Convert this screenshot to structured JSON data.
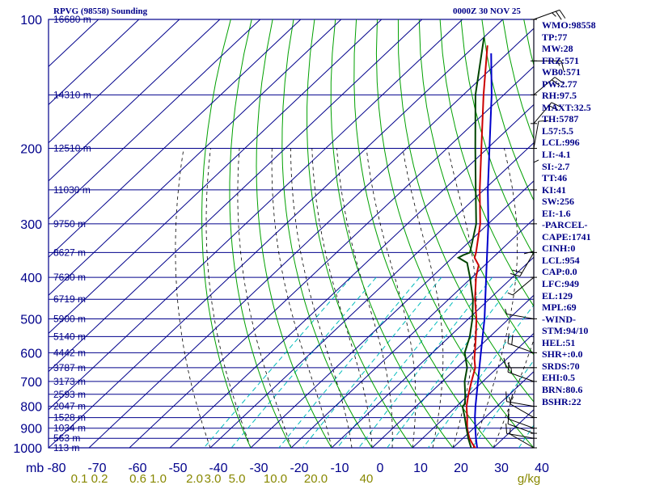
{
  "header": {
    "title": "RPVG (98558) Sounding",
    "datetime": "0000Z 30 NOV 25"
  },
  "colors": {
    "grid": "#00008b",
    "dry_adiabat": "#00a000",
    "mixing_ratio": "#00bbbb",
    "moist_adiabat": "#000000",
    "temperature": "#cc0000",
    "dewpoint": "#004400",
    "parcel": "#0000cc",
    "label_blue": "#000088",
    "mixing_label": "#888800"
  },
  "stats": [
    "WMO:98558",
    "TP:77",
    "MW:28",
    "FRZ:571",
    "WB0:571",
    "PW:2.77",
    "RH:97.5",
    "MAXT:32.5",
    "TH:5787",
    "L57:5.5",
    "LCL:996",
    "LI:-4.1",
    "SI:-2.7",
    "TT:46",
    "KI:41",
    "SW:256",
    "EI:-1.6",
    "-PARCEL-",
    "CAPE:1741",
    "CINH:0",
    "LCL:954",
    "CAP:0.0",
    "LFC:949",
    "EL:129",
    "MPL:69",
    "-WIND-",
    "STM:94/10",
    "HEL:51",
    "SHR+:0.0",
    "SRDS:70",
    "EHI:0.5",
    "BRN:80.6",
    "BSHR:22"
  ],
  "chart_data": {
    "type": "skew-t",
    "title": "RPVG (98558) Sounding",
    "pressure_unit_label": "mb",
    "pressure_ticks": [
      100,
      200,
      300,
      400,
      500,
      600,
      700,
      800,
      900,
      1000
    ],
    "temperature_ticks": [
      -80,
      -70,
      -60,
      -50,
      -40,
      -30,
      -20,
      -10,
      0,
      10,
      20,
      30,
      40
    ],
    "temperature_tick_labels": [
      "-80",
      "-70",
      "-60",
      "-50",
      "-40",
      "-30",
      "-20",
      "-10",
      "0",
      "10",
      "20",
      "30",
      "40"
    ],
    "pressure_range": [
      100,
      1050
    ],
    "temperature_range_at_bottom": [
      -80,
      40
    ],
    "height_labels": [
      {
        "p": 100,
        "label": "16680 m"
      },
      {
        "p": 150,
        "label": "14310 m"
      },
      {
        "p": 200,
        "label": "12510 m"
      },
      {
        "p": 250,
        "label": "11030 m"
      },
      {
        "p": 300,
        "label": "9750 m"
      },
      {
        "p": 350,
        "label": "8627 m"
      },
      {
        "p": 400,
        "label": "7630 m"
      },
      {
        "p": 450,
        "label": "6719 m"
      },
      {
        "p": 500,
        "label": "5900 m"
      },
      {
        "p": 550,
        "label": "5140 m"
      },
      {
        "p": 600,
        "label": "4442 m"
      },
      {
        "p": 650,
        "label": "3787 m"
      },
      {
        "p": 700,
        "label": "3173 m"
      },
      {
        "p": 750,
        "label": "2593 m"
      },
      {
        "p": 800,
        "label": "2047 m"
      },
      {
        "p": 850,
        "label": "1528 m"
      },
      {
        "p": 900,
        "label": "1034 m"
      },
      {
        "p": 950,
        "label": "563 m"
      },
      {
        "p": 1000,
        "label": "113 m"
      }
    ],
    "mixing_ratio_labels": [
      "0.1",
      "0.2",
      "0.6",
      "1.0",
      "2.0",
      "3.0",
      "5.0",
      "10.0",
      "20.0",
      "40",
      "g/kg"
    ],
    "mixing_ratio_label_x": [
      -76,
      -71,
      -61.5,
      -56.5,
      -47.5,
      -43,
      -37,
      -27.5,
      -17.5,
      -5
    ],
    "dry_adiabats_theta_c": [
      -30,
      -20,
      -10,
      0,
      10,
      20,
      30,
      40,
      50,
      60,
      70,
      80,
      90,
      100,
      110,
      120,
      130,
      140,
      150,
      160,
      170,
      180,
      190,
      200,
      210,
      220,
      230,
      240,
      250,
      260,
      270,
      280,
      290,
      300,
      310,
      320,
      330,
      340,
      350,
      360,
      370,
      380
    ],
    "moist_adiabats_c": [
      -40,
      -30,
      -20,
      -10,
      -5,
      0,
      5,
      10,
      15,
      20,
      25,
      30
    ],
    "mixing_ratios_gkg": [
      0.1,
      0.2,
      0.6,
      1,
      2,
      3,
      5,
      10,
      20,
      40
    ],
    "temperature_profile": [
      {
        "p": 1003,
        "t": 25.0
      },
      {
        "p": 1000,
        "t": 25.5
      },
      {
        "p": 975,
        "t": 23.5
      },
      {
        "p": 950,
        "t": 21.6
      },
      {
        "p": 925,
        "t": 20.0
      },
      {
        "p": 900,
        "t": 18.4
      },
      {
        "p": 875,
        "t": 17.0
      },
      {
        "p": 850,
        "t": 15.6
      },
      {
        "p": 800,
        "t": 12.5
      },
      {
        "p": 750,
        "t": 9.8
      },
      {
        "p": 700,
        "t": 7.2
      },
      {
        "p": 650,
        "t": 4.5
      },
      {
        "p": 620,
        "t": 2.0
      },
      {
        "p": 600,
        "t": 0.5
      },
      {
        "p": 550,
        "t": -3.5
      },
      {
        "p": 500,
        "t": -8.0
      },
      {
        "p": 450,
        "t": -13.5
      },
      {
        "p": 400,
        "t": -19.0
      },
      {
        "p": 375,
        "t": -21.5
      },
      {
        "p": 360,
        "t": -24.5
      },
      {
        "p": 350,
        "t": -25.5
      },
      {
        "p": 300,
        "t": -32.0
      },
      {
        "p": 250,
        "t": -41.0
      },
      {
        "p": 200,
        "t": -51.5
      },
      {
        "p": 150,
        "t": -65.0
      },
      {
        "p": 115,
        "t": -77.0
      }
    ],
    "dewpoint_profile": [
      {
        "p": 1003,
        "t": 24.5
      },
      {
        "p": 1000,
        "t": 24.5
      },
      {
        "p": 950,
        "t": 21.3
      },
      {
        "p": 900,
        "t": 18.2
      },
      {
        "p": 850,
        "t": 15.0
      },
      {
        "p": 800,
        "t": 11.5
      },
      {
        "p": 790,
        "t": 11.5
      },
      {
        "p": 750,
        "t": 9.0
      },
      {
        "p": 700,
        "t": 5.5
      },
      {
        "p": 650,
        "t": 2.5
      },
      {
        "p": 600,
        "t": -2.0
      },
      {
        "p": 550,
        "t": -5.0
      },
      {
        "p": 500,
        "t": -9.0
      },
      {
        "p": 450,
        "t": -14.0
      },
      {
        "p": 400,
        "t": -20.5
      },
      {
        "p": 370,
        "t": -25.0
      },
      {
        "p": 360,
        "t": -28.5
      },
      {
        "p": 355,
        "t": -28.0
      },
      {
        "p": 350,
        "t": -27.0
      },
      {
        "p": 300,
        "t": -33.0
      },
      {
        "p": 250,
        "t": -42.0
      },
      {
        "p": 200,
        "t": -53.0
      },
      {
        "p": 150,
        "t": -67.0
      },
      {
        "p": 110,
        "t": -80.0
      }
    ],
    "parcel_profile": [
      {
        "p": 1003,
        "t": 26.0
      },
      {
        "p": 1000,
        "t": 26.0
      },
      {
        "p": 950,
        "t": 23.2
      },
      {
        "p": 900,
        "t": 20.4
      },
      {
        "p": 850,
        "t": 17.5
      },
      {
        "p": 800,
        "t": 14.7
      },
      {
        "p": 700,
        "t": 8.8
      },
      {
        "p": 600,
        "t": 2.0
      },
      {
        "p": 500,
        "t": -6.0
      },
      {
        "p": 400,
        "t": -16.5
      },
      {
        "p": 300,
        "t": -30.0
      },
      {
        "p": 250,
        "t": -39.0
      },
      {
        "p": 200,
        "t": -49.5
      },
      {
        "p": 150,
        "t": -63.0
      },
      {
        "p": 120,
        "t": -74.0
      }
    ],
    "wind_barbs": [
      {
        "p": 1000,
        "dir": 300,
        "kt": 5
      },
      {
        "p": 950,
        "dir": 280,
        "kt": 10
      },
      {
        "p": 925,
        "dir": 290,
        "kt": 10
      },
      {
        "p": 900,
        "dir": 290,
        "kt": 10
      },
      {
        "p": 850,
        "dir": 300,
        "kt": 10
      },
      {
        "p": 800,
        "dir": 280,
        "kt": 15
      },
      {
        "p": 700,
        "dir": 290,
        "kt": 15
      },
      {
        "p": 650,
        "dir": 270,
        "kt": 15
      },
      {
        "p": 600,
        "dir": 290,
        "kt": 20
      },
      {
        "p": 500,
        "dir": 280,
        "kt": 5
      },
      {
        "p": 400,
        "dir": 230,
        "kt": 5
      },
      {
        "p": 350,
        "dir": 210,
        "kt": 20
      },
      {
        "p": 300,
        "dir": 180,
        "kt": 10
      },
      {
        "p": 250,
        "dir": 0,
        "kt": 5
      },
      {
        "p": 200,
        "dir": 10,
        "kt": 10
      },
      {
        "p": 175,
        "dir": 40,
        "kt": 20
      },
      {
        "p": 150,
        "dir": 50,
        "kt": 20
      },
      {
        "p": 125,
        "dir": 90,
        "kt": 15
      },
      {
        "p": 100,
        "dir": 70,
        "kt": 25
      }
    ]
  }
}
